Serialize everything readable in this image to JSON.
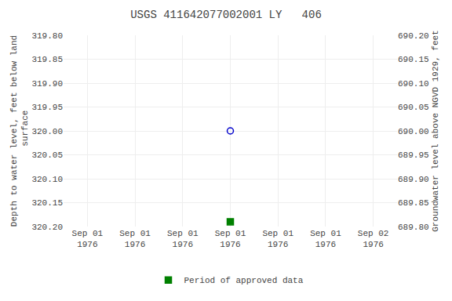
{
  "chart_data": {
    "type": "scatter",
    "title": "USGS 411642077002001 LY   406",
    "y_label": "Depth to water level, feet below land\n surface",
    "y2_label": "Groundwater level above NGVD 1929, feet",
    "categories": [
      "Sep 01\n1976",
      "Sep 01\n1976",
      "Sep 01\n1976",
      "Sep 01\n1976",
      "Sep 01\n1976",
      "Sep 01\n1976",
      "Sep 02\n1976"
    ],
    "series": [
      {
        "color": "#0000cc",
        "marker": "circle-open",
        "values": [
          null,
          null,
          null,
          320.0,
          null,
          null,
          null
        ]
      },
      {
        "name": "Period of approved data",
        "color": "#008000",
        "marker": "square",
        "values": [
          null,
          null,
          null,
          320.19,
          null,
          null,
          null
        ]
      }
    ],
    "ylim": [
      320.2,
      319.8
    ],
    "yticks": [
      {
        "value": 319.8,
        "label": "319.80"
      },
      {
        "value": 319.85,
        "label": "319.85"
      },
      {
        "value": 319.9,
        "label": "319.90"
      },
      {
        "value": 319.95,
        "label": "319.95"
      },
      {
        "value": 320.0,
        "label": "320.00"
      },
      {
        "value": 320.05,
        "label": "320.05"
      },
      {
        "value": 320.1,
        "label": "320.10"
      },
      {
        "value": 320.15,
        "label": "320.15"
      },
      {
        "value": 320.2,
        "label": "320.20"
      }
    ],
    "y2lim": [
      689.8,
      690.2
    ],
    "y2ticks": [
      {
        "value": 689.8,
        "label": "689.80"
      },
      {
        "value": 689.85,
        "label": "689.85"
      },
      {
        "value": 689.9,
        "label": "689.90"
      },
      {
        "value": 689.95,
        "label": "689.95"
      },
      {
        "value": 690.0,
        "label": "690.00"
      },
      {
        "value": 690.05,
        "label": "690.05"
      },
      {
        "value": 690.1,
        "label": "690.10"
      },
      {
        "value": 690.15,
        "label": "690.15"
      },
      {
        "value": 690.2,
        "label": "690.20"
      }
    ],
    "grid": true,
    "legend": "bottom"
  }
}
